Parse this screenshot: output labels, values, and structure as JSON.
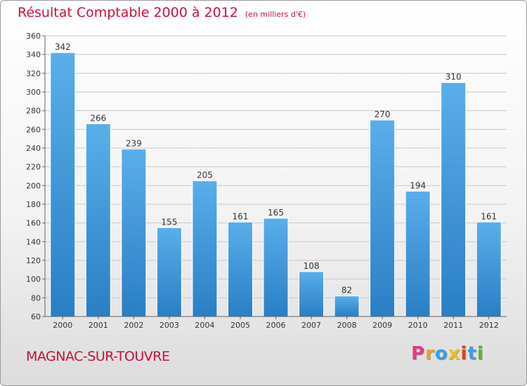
{
  "chart_data": {
    "type": "bar",
    "title": "Résultat Comptable 2000 à 2012",
    "subtitle": "(en milliers d'€)",
    "xlabel": "",
    "ylabel": "",
    "categories": [
      "2000",
      "2001",
      "2002",
      "2003",
      "2004",
      "2005",
      "2006",
      "2007",
      "2008",
      "2009",
      "2010",
      "2011",
      "2012"
    ],
    "values": [
      342,
      266,
      239,
      155,
      205,
      161,
      165,
      108,
      82,
      270,
      194,
      310,
      161
    ],
    "ylim": [
      60,
      360
    ],
    "yticks": [
      60,
      80,
      100,
      120,
      140,
      160,
      180,
      200,
      220,
      240,
      260,
      280,
      300,
      320,
      340,
      360
    ],
    "grid": true,
    "bar_color": "#3a8fd6"
  },
  "footer": {
    "commune": "MAGNAC-SUR-TOUVRE",
    "logo_letters": [
      "P",
      "r",
      "o",
      "x",
      "i",
      "t",
      "i"
    ],
    "logo_colors": [
      "#e03c8a",
      "#f0a020",
      "#3aa0e0",
      "#e8c020",
      "#e04020",
      "#3aa0e0",
      "#60b030"
    ]
  }
}
